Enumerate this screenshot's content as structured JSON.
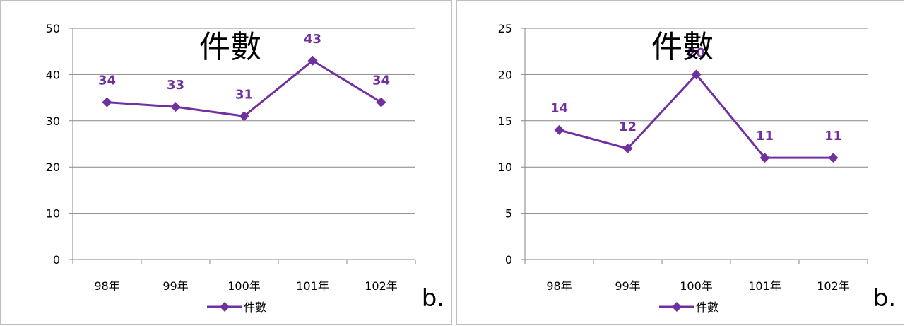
{
  "colors": {
    "series": "#7030a0",
    "gridline": "#868686",
    "axis": "#868686"
  },
  "legend_marker_icon": "diamond-line-icon",
  "chart_data": [
    {
      "type": "line",
      "title": "件數",
      "categories": [
        "98年",
        "99年",
        "100年",
        "101年",
        "102年"
      ],
      "series": [
        {
          "name": "件數",
          "values": [
            34,
            33,
            31,
            43,
            34
          ]
        }
      ],
      "ylim": [
        0,
        50
      ],
      "yticks": [
        0,
        10,
        20,
        30,
        40,
        50
      ],
      "grid": true,
      "legend": "bottom",
      "data_labels": true,
      "tag": "b."
    },
    {
      "type": "line",
      "title": "件數",
      "categories": [
        "98年",
        "99年",
        "100年",
        "101年",
        "102年"
      ],
      "series": [
        {
          "name": "件數",
          "values": [
            14,
            12,
            20,
            11,
            11
          ]
        }
      ],
      "ylim": [
        0,
        25
      ],
      "yticks": [
        0,
        5,
        10,
        15,
        20,
        25
      ],
      "grid": true,
      "legend": "bottom",
      "data_labels": true,
      "tag": "b."
    }
  ]
}
